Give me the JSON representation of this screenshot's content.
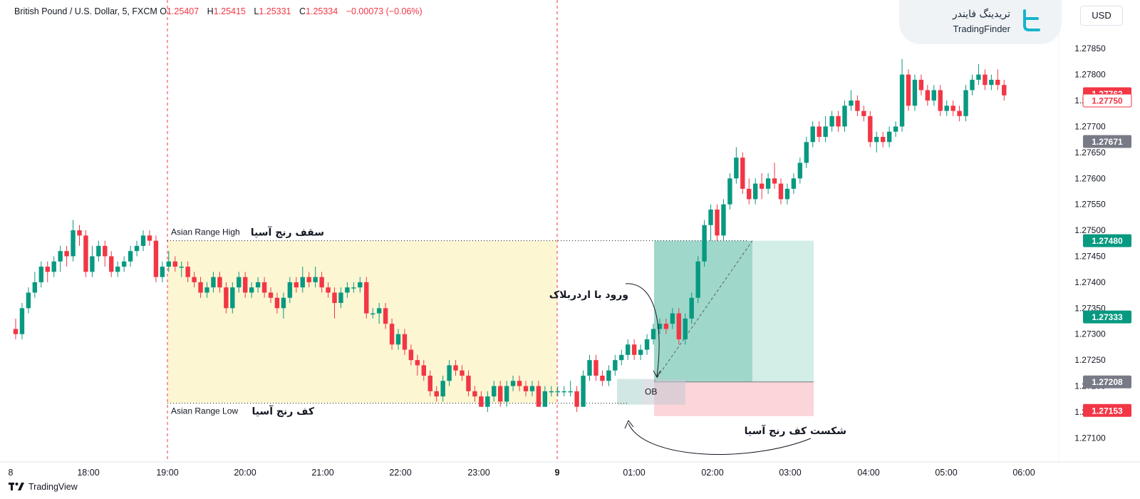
{
  "header": {
    "symbol": "British Pound / U.S. Dollar, 5, FXCM",
    "o_label": "O",
    "o": "1.25407",
    "h_label": "H",
    "h": "1.25415",
    "l_label": "L",
    "l": "1.25331",
    "c_label": "C",
    "c": "1.25334",
    "change": "−0.00073 (−0.06%)"
  },
  "logo": {
    "name_fa": "تریدینگ فایندر",
    "name_en": "TradingFinder"
  },
  "currency": "USD",
  "footer": {
    "brand": "TradingView"
  },
  "colors": {
    "bull": "#089981",
    "bear": "#f23645",
    "asian_box": "#fdf6d3",
    "tp_zone": "#a8dcd1",
    "sl_zone": "#fbd5d9"
  },
  "chart_data": {
    "type": "candlestick",
    "x_ticks": [
      "8",
      "18:00",
      "19:00",
      "20:00",
      "21:00",
      "22:00",
      "23:00",
      "9",
      "01:00",
      "02:00",
      "03:00",
      "04:00",
      "05:00",
      "06:00"
    ],
    "y_ticks": [
      "1.27850",
      "1.27800",
      "1.27750",
      "1.27700",
      "1.27650",
      "1.27600",
      "1.27550",
      "1.27500",
      "1.27450",
      "1.27400",
      "1.27350",
      "1.27300",
      "1.27250",
      "1.27200",
      "1.27150",
      "1.27100"
    ],
    "ylim": [
      1.2708,
      1.2789
    ],
    "price_labels": [
      {
        "value": "1.27763",
        "style": "red"
      },
      {
        "value": "1.27750",
        "style": "red-outline"
      },
      {
        "value": "1.27671",
        "style": "grey"
      },
      {
        "value": "1.27480",
        "style": "green"
      },
      {
        "value": "1.27333",
        "style": "green"
      },
      {
        "value": "1.27208",
        "style": "grey"
      },
      {
        "value": "1.27153",
        "style": "red"
      }
    ],
    "annotations": {
      "asian_high_en": "Asian Range High",
      "asian_high_fa": "سقف رنج آسیا",
      "asian_low_en": "Asian Range Low",
      "asian_low_fa": "کف رنج آسیا",
      "entry_fa": "ورود با اردربلاک",
      "break_fa": "شکست کف رنج آسیا",
      "ob": "OB"
    },
    "levels": {
      "asian_high": 1.2748,
      "asian_low": 1.27167,
      "entry": 1.27208,
      "take_profit": 1.2748,
      "stop_loss": 1.27153
    },
    "candles": [
      [
        1.2731,
        1.273,
        1.2733,
        1.2729
      ],
      [
        1.273,
        1.2735,
        1.2736,
        1.2729
      ],
      [
        1.2735,
        1.2738,
        1.2739,
        1.2734
      ],
      [
        1.2738,
        1.274,
        1.2742,
        1.2737
      ],
      [
        1.274,
        1.2743,
        1.2744,
        1.2739
      ],
      [
        1.2743,
        1.2742,
        1.2744,
        1.274
      ],
      [
        1.2742,
        1.2744,
        1.2745,
        1.2741
      ],
      [
        1.2744,
        1.2746,
        1.2747,
        1.2742
      ],
      [
        1.2746,
        1.2745,
        1.2747,
        1.2743
      ],
      [
        1.2745,
        1.275,
        1.2752,
        1.2744
      ],
      [
        1.275,
        1.2749,
        1.2751,
        1.2747
      ],
      [
        1.2749,
        1.2742,
        1.275,
        1.2741
      ],
      [
        1.2742,
        1.2745,
        1.2747,
        1.2741
      ],
      [
        1.2745,
        1.2747,
        1.2748,
        1.2744
      ],
      [
        1.2747,
        1.2745,
        1.2748,
        1.2743
      ],
      [
        1.2745,
        1.2742,
        1.2746,
        1.2741
      ],
      [
        1.2742,
        1.2743,
        1.2744,
        1.2741
      ],
      [
        1.2743,
        1.2744,
        1.2745,
        1.2742
      ],
      [
        1.2744,
        1.2746,
        1.2747,
        1.2743
      ],
      [
        1.2746,
        1.2747,
        1.2748,
        1.2745
      ],
      [
        1.2747,
        1.2749,
        1.275,
        1.2746
      ],
      [
        1.2749,
        1.2748,
        1.275,
        1.2747
      ],
      [
        1.2748,
        1.2741,
        1.2749,
        1.274
      ],
      [
        1.2741,
        1.2743,
        1.2744,
        1.274
      ],
      [
        1.2743,
        1.2744,
        1.2746,
        1.2742
      ],
      [
        1.2744,
        1.2743,
        1.2745,
        1.2742
      ],
      [
        1.2743,
        1.2743,
        1.2744,
        1.2741
      ],
      [
        1.2743,
        1.2741,
        1.2744,
        1.274
      ],
      [
        1.2741,
        1.274,
        1.2742,
        1.2739
      ],
      [
        1.274,
        1.2738,
        1.2741,
        1.2737
      ],
      [
        1.2738,
        1.2739,
        1.274,
        1.2737
      ],
      [
        1.2739,
        1.2741,
        1.2742,
        1.2738
      ],
      [
        1.2741,
        1.2739,
        1.2742,
        1.2738
      ],
      [
        1.2739,
        1.2735,
        1.274,
        1.2734
      ],
      [
        1.2735,
        1.2739,
        1.274,
        1.2734
      ],
      [
        1.2739,
        1.2741,
        1.2742,
        1.2738
      ],
      [
        1.2741,
        1.2738,
        1.2742,
        1.2737
      ],
      [
        1.2738,
        1.2739,
        1.274,
        1.2737
      ],
      [
        1.2739,
        1.274,
        1.2741,
        1.2738
      ],
      [
        1.274,
        1.2738,
        1.2741,
        1.2737
      ],
      [
        1.2738,
        1.2737,
        1.2739,
        1.2736
      ],
      [
        1.2737,
        1.2735,
        1.2738,
        1.2734
      ],
      [
        1.2735,
        1.2737,
        1.2738,
        1.2733
      ],
      [
        1.2737,
        1.274,
        1.2741,
        1.2736
      ],
      [
        1.274,
        1.2739,
        1.2741,
        1.2738
      ],
      [
        1.2739,
        1.2741,
        1.2743,
        1.2738
      ],
      [
        1.2741,
        1.274,
        1.2742,
        1.2739
      ],
      [
        1.274,
        1.2741,
        1.2743,
        1.2739
      ],
      [
        1.2741,
        1.2739,
        1.2742,
        1.2738
      ],
      [
        1.2739,
        1.2738,
        1.274,
        1.2737
      ],
      [
        1.2738,
        1.2736,
        1.2739,
        1.2733
      ],
      [
        1.2736,
        1.2738,
        1.2739,
        1.2735
      ],
      [
        1.2738,
        1.2739,
        1.274,
        1.2737
      ],
      [
        1.2739,
        1.2739,
        1.274,
        1.2738
      ],
      [
        1.2739,
        1.274,
        1.2741,
        1.2738
      ],
      [
        1.274,
        1.2734,
        1.2741,
        1.2733
      ],
      [
        1.2734,
        1.2734,
        1.2735,
        1.2733
      ],
      [
        1.2734,
        1.2735,
        1.2736,
        1.2732
      ],
      [
        1.2735,
        1.2732,
        1.2736,
        1.2731
      ],
      [
        1.2732,
        1.2728,
        1.2733,
        1.2727
      ],
      [
        1.2728,
        1.273,
        1.2731,
        1.2727
      ],
      [
        1.273,
        1.2727,
        1.2731,
        1.2726
      ],
      [
        1.2727,
        1.2725,
        1.2728,
        1.2724
      ],
      [
        1.2725,
        1.2724,
        1.2726,
        1.2722
      ],
      [
        1.2724,
        1.2722,
        1.2725,
        1.2721
      ],
      [
        1.2722,
        1.2719,
        1.2723,
        1.2718
      ],
      [
        1.2719,
        1.2718,
        1.272,
        1.2717
      ],
      [
        1.2718,
        1.2721,
        1.2722,
        1.2717
      ],
      [
        1.2721,
        1.2724,
        1.2725,
        1.272
      ],
      [
        1.2724,
        1.2723,
        1.2725,
        1.2722
      ],
      [
        1.2723,
        1.2722,
        1.2724,
        1.2721
      ],
      [
        1.2722,
        1.2719,
        1.2723,
        1.2718
      ],
      [
        1.2719,
        1.2718,
        1.272,
        1.2717
      ],
      [
        1.2718,
        1.2716,
        1.2719,
        1.2716
      ],
      [
        1.2716,
        1.2718,
        1.2719,
        1.2715
      ],
      [
        1.2718,
        1.272,
        1.2721,
        1.2717
      ],
      [
        1.272,
        1.2717,
        1.2721,
        1.2716
      ],
      [
        1.2717,
        1.272,
        1.2721,
        1.2716
      ],
      [
        1.272,
        1.2721,
        1.2722,
        1.2719
      ],
      [
        1.2721,
        1.272,
        1.2722,
        1.2719
      ],
      [
        1.272,
        1.2719,
        1.2721,
        1.2718
      ],
      [
        1.2719,
        1.272,
        1.2721,
        1.2718
      ],
      [
        1.272,
        1.2716,
        1.2721,
        1.2716
      ],
      [
        1.2716,
        1.2719,
        1.272,
        1.2716
      ],
      [
        1.2719,
        1.2719,
        1.272,
        1.2718
      ],
      [
        1.2719,
        1.2719,
        1.272,
        1.2718
      ],
      [
        1.2719,
        1.2719,
        1.272,
        1.2718
      ],
      [
        1.2719,
        1.2719,
        1.2721,
        1.2718
      ],
      [
        1.2719,
        1.2716,
        1.272,
        1.2715
      ],
      [
        1.2716,
        1.2722,
        1.2723,
        1.2716
      ],
      [
        1.2722,
        1.2725,
        1.2726,
        1.2721
      ],
      [
        1.2725,
        1.2722,
        1.2726,
        1.2721
      ],
      [
        1.2722,
        1.2721,
        1.2723,
        1.272
      ],
      [
        1.2721,
        1.2723,
        1.2724,
        1.272
      ],
      [
        1.2723,
        1.2725,
        1.2726,
        1.2722
      ],
      [
        1.2725,
        1.2726,
        1.2727,
        1.2724
      ],
      [
        1.2726,
        1.2728,
        1.2729,
        1.2725
      ],
      [
        1.2728,
        1.2726,
        1.2729,
        1.2725
      ],
      [
        1.2726,
        1.2727,
        1.2728,
        1.2725
      ],
      [
        1.2727,
        1.2729,
        1.273,
        1.2726
      ],
      [
        1.2729,
        1.2731,
        1.2732,
        1.2728
      ],
      [
        1.2731,
        1.2732,
        1.2733,
        1.273
      ],
      [
        1.2732,
        1.2731,
        1.2733,
        1.273
      ],
      [
        1.2732,
        1.2734,
        1.2735,
        1.2731
      ],
      [
        1.2734,
        1.2729,
        1.2735,
        1.2728
      ],
      [
        1.2729,
        1.2733,
        1.2734,
        1.2728
      ],
      [
        1.2733,
        1.2737,
        1.2738,
        1.2732
      ],
      [
        1.2737,
        1.2744,
        1.2745,
        1.2736
      ],
      [
        1.2744,
        1.2751,
        1.2752,
        1.2743
      ],
      [
        1.2751,
        1.2754,
        1.2755,
        1.2748
      ],
      [
        1.2754,
        1.2749,
        1.2755,
        1.2748
      ],
      [
        1.2749,
        1.2755,
        1.2756,
        1.2748
      ],
      [
        1.2755,
        1.276,
        1.2761,
        1.2754
      ],
      [
        1.276,
        1.2764,
        1.2766,
        1.2759
      ],
      [
        1.2764,
        1.2758,
        1.2765,
        1.2757
      ],
      [
        1.2758,
        1.2756,
        1.276,
        1.2755
      ],
      [
        1.2756,
        1.2759,
        1.276,
        1.2755
      ],
      [
        1.2759,
        1.2758,
        1.2761,
        1.2756
      ],
      [
        1.2758,
        1.276,
        1.2761,
        1.2757
      ],
      [
        1.276,
        1.2759,
        1.2763,
        1.2758
      ],
      [
        1.2759,
        1.2756,
        1.276,
        1.2755
      ],
      [
        1.2756,
        1.2758,
        1.2759,
        1.2755
      ],
      [
        1.2758,
        1.276,
        1.2761,
        1.2757
      ],
      [
        1.276,
        1.2763,
        1.2764,
        1.2759
      ],
      [
        1.2763,
        1.2767,
        1.2768,
        1.2762
      ],
      [
        1.2767,
        1.277,
        1.2771,
        1.2766
      ],
      [
        1.277,
        1.2768,
        1.2771,
        1.2767
      ],
      [
        1.2768,
        1.277,
        1.2772,
        1.2767
      ],
      [
        1.277,
        1.2772,
        1.2773,
        1.2769
      ],
      [
        1.2772,
        1.277,
        1.2773,
        1.2769
      ],
      [
        1.277,
        1.2774,
        1.2775,
        1.2769
      ],
      [
        1.2774,
        1.2775,
        1.2777,
        1.2773
      ],
      [
        1.2775,
        1.2773,
        1.2776,
        1.2772
      ],
      [
        1.2773,
        1.2772,
        1.2774,
        1.2771
      ],
      [
        1.2772,
        1.2767,
        1.2773,
        1.2766
      ],
      [
        1.2767,
        1.2768,
        1.2769,
        1.2765
      ],
      [
        1.2768,
        1.2767,
        1.2769,
        1.2766
      ],
      [
        1.2767,
        1.2769,
        1.277,
        1.2766
      ],
      [
        1.2769,
        1.277,
        1.2771,
        1.2768
      ],
      [
        1.277,
        1.278,
        1.2783,
        1.2769
      ],
      [
        1.278,
        1.2774,
        1.2781,
        1.2773
      ],
      [
        1.2774,
        1.2779,
        1.278,
        1.2773
      ],
      [
        1.2779,
        1.2777,
        1.278,
        1.2776
      ],
      [
        1.2777,
        1.2775,
        1.2778,
        1.2774
      ],
      [
        1.2775,
        1.2777,
        1.2778,
        1.2774
      ],
      [
        1.2777,
        1.2773,
        1.2778,
        1.2772
      ],
      [
        1.2773,
        1.2774,
        1.2775,
        1.2772
      ],
      [
        1.2774,
        1.2773,
        1.2775,
        1.2772
      ],
      [
        1.2773,
        1.2772,
        1.2774,
        1.2771
      ],
      [
        1.2772,
        1.2777,
        1.2778,
        1.2771
      ],
      [
        1.2777,
        1.2779,
        1.278,
        1.2776
      ],
      [
        1.2779,
        1.278,
        1.2782,
        1.2778
      ],
      [
        1.278,
        1.2778,
        1.2781,
        1.2777
      ],
      [
        1.2778,
        1.2779,
        1.278,
        1.2777
      ],
      [
        1.2779,
        1.2778,
        1.2781,
        1.2777
      ],
      [
        1.2778,
        1.2776,
        1.2779,
        1.2775
      ]
    ]
  }
}
